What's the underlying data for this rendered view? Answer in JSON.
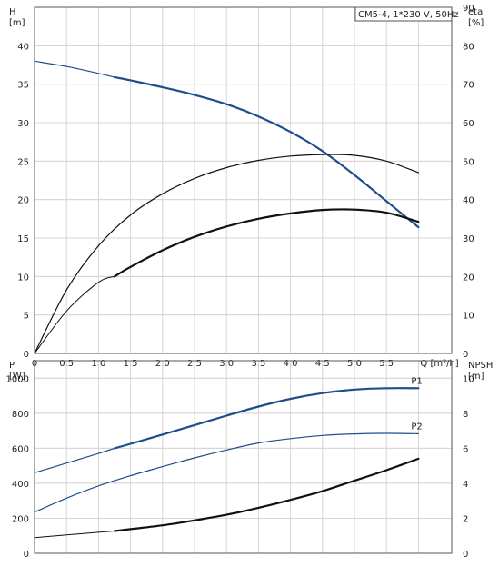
{
  "chart_data": [
    {
      "type": "line",
      "title": "CM5-4, 1*230 V, 50Hz",
      "xlabel": "Q [m³/h]",
      "x_ticks": [
        "0",
        "0.5",
        "1.0",
        "1.5",
        "2.0",
        "2.5",
        "3.0",
        "3.5",
        "4.0",
        "4.5",
        "5.0",
        "5.5"
      ],
      "x_range": [
        0,
        6
      ],
      "ylabel_left": [
        "H",
        "[m]"
      ],
      "y_left_ticks": [
        "0",
        "5",
        "10",
        "15",
        "20",
        "25",
        "30",
        "35",
        "40"
      ],
      "y_left_range": [
        0,
        45
      ],
      "ylabel_right": [
        "eta",
        "[%]"
      ],
      "y_right_ticks": [
        "0",
        "10",
        "20",
        "30",
        "40",
        "50",
        "60",
        "70",
        "80",
        "90"
      ],
      "y_right_range": [
        0,
        90
      ],
      "grid": true,
      "series": [
        {
          "axis": "left",
          "color": "#1f4e8c",
          "width": 1.2,
          "x": [
            0,
            0.5,
            1.0,
            1.25
          ],
          "y": [
            38,
            37.3,
            36.4,
            35.9
          ]
        },
        {
          "axis": "left",
          "color": "#1f4e8c",
          "width": 2.2,
          "x": [
            1.25,
            1.5,
            2.0,
            2.5,
            3.0,
            3.5,
            4.0,
            4.5,
            5.0,
            5.5,
            6.0
          ],
          "y": [
            35.9,
            35.5,
            34.6,
            33.6,
            32.4,
            30.8,
            28.8,
            26.3,
            23.2,
            19.8,
            16.4
          ]
        },
        {
          "axis": "right",
          "color": "#111111",
          "width": 1.2,
          "x": [
            0,
            0.5,
            1.0,
            1.5,
            2.0,
            2.5,
            3.0,
            3.5,
            4.0,
            4.5,
            5.0,
            5.5,
            6.0
          ],
          "y": [
            0,
            16.5,
            28,
            36,
            41.5,
            45.5,
            48.3,
            50.2,
            51.3,
            51.7,
            51.5,
            50,
            47
          ]
        },
        {
          "axis": "right",
          "color": "#111111",
          "width": 1.0,
          "x": [
            0,
            0.5,
            1.0,
            1.25
          ],
          "y": [
            0,
            11,
            18.5,
            20
          ]
        },
        {
          "axis": "right",
          "color": "#111111",
          "width": 2.2,
          "x": [
            1.25,
            1.5,
            2.0,
            2.5,
            3.0,
            3.5,
            4.0,
            4.5,
            5.0,
            5.5,
            6.0
          ],
          "y": [
            20,
            22.5,
            26.8,
            30.3,
            33,
            35,
            36.4,
            37.3,
            37.4,
            36.6,
            34.2
          ]
        }
      ]
    },
    {
      "type": "line",
      "ylabel_left": [
        "P",
        "[W]"
      ],
      "y_left_ticks": [
        "0",
        "200",
        "400",
        "600",
        "800",
        "1000"
      ],
      "y_left_range": [
        0,
        1100
      ],
      "ylabel_right": [
        "NPSH",
        "[m]"
      ],
      "y_right_ticks": [
        "0",
        "2",
        "4",
        "6",
        "8",
        "10"
      ],
      "y_right_range": [
        0,
        11
      ],
      "x_range": [
        0,
        6
      ],
      "grid": true,
      "series": [
        {
          "name": "P1",
          "axis": "left",
          "color": "#1f4e8c",
          "width": 1.2,
          "x": [
            0,
            0.5,
            1.0,
            1.25
          ],
          "y": [
            460,
            515,
            570,
            600
          ]
        },
        {
          "name": "P1",
          "axis": "left",
          "color": "#1f4e8c",
          "width": 2.2,
          "x": [
            1.25,
            1.5,
            2.0,
            2.5,
            3.0,
            3.5,
            4.0,
            4.5,
            5.0,
            5.5,
            6.0
          ],
          "y": [
            600,
            625,
            678,
            732,
            786,
            838,
            882,
            915,
            935,
            943,
            943
          ]
        },
        {
          "name": "P2",
          "axis": "left",
          "color": "#1f4e8c",
          "width": 1.2,
          "x": [
            0,
            0.5,
            1.0,
            1.5,
            2.0,
            2.5,
            3.0,
            3.5,
            4.0,
            4.5,
            5.0,
            5.5,
            6.0
          ],
          "y": [
            235,
            315,
            385,
            443,
            495,
            545,
            590,
            630,
            655,
            673,
            682,
            685,
            683
          ]
        },
        {
          "axis": "right",
          "color": "#111111",
          "width": 1.0,
          "x": [
            0,
            0.5,
            1.0,
            1.25
          ],
          "y": [
            0.9,
            1.05,
            1.2,
            1.27
          ]
        },
        {
          "axis": "right",
          "color": "#111111",
          "width": 2.2,
          "x": [
            1.25,
            1.5,
            2.0,
            2.5,
            3.0,
            3.5,
            4.0,
            4.5,
            5.0,
            5.5,
            6.0
          ],
          "y": [
            1.27,
            1.38,
            1.6,
            1.88,
            2.2,
            2.6,
            3.05,
            3.55,
            4.15,
            4.75,
            5.4
          ]
        }
      ],
      "series_labels": [
        {
          "text": "P1",
          "x": 6.0,
          "y": 943
        },
        {
          "text": "P2",
          "x": 6.0,
          "y": 683
        }
      ]
    }
  ]
}
